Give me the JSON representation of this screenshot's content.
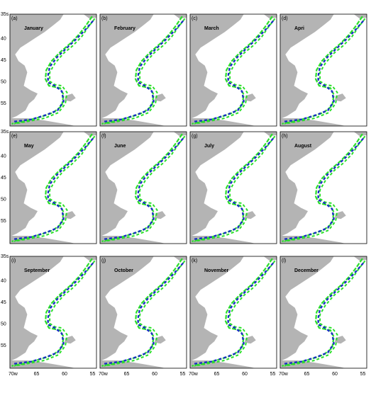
{
  "panels": [
    {
      "label": "(a)",
      "month": "January"
    },
    {
      "label": "(b)",
      "month": "February"
    },
    {
      "label": "(c)",
      "month": "March"
    },
    {
      "label": "(d)",
      "month": "Apri"
    },
    {
      "label": "(e)",
      "month": "May"
    },
    {
      "label": "(f)",
      "month": "June"
    },
    {
      "label": "(g)",
      "month": "July"
    },
    {
      "label": "(h)",
      "month": "August"
    },
    {
      "label": "(i)",
      "month": "September"
    },
    {
      "label": "(j)",
      "month": "October"
    },
    {
      "label": "(k)",
      "month": "November"
    },
    {
      "label": "(l)",
      "month": "December"
    }
  ],
  "y_tick_labels": [
    "35s",
    "40",
    "45",
    "50",
    "55"
  ],
  "x_tick_labels": [
    "70w",
    "65",
    "60",
    "55"
  ]
}
